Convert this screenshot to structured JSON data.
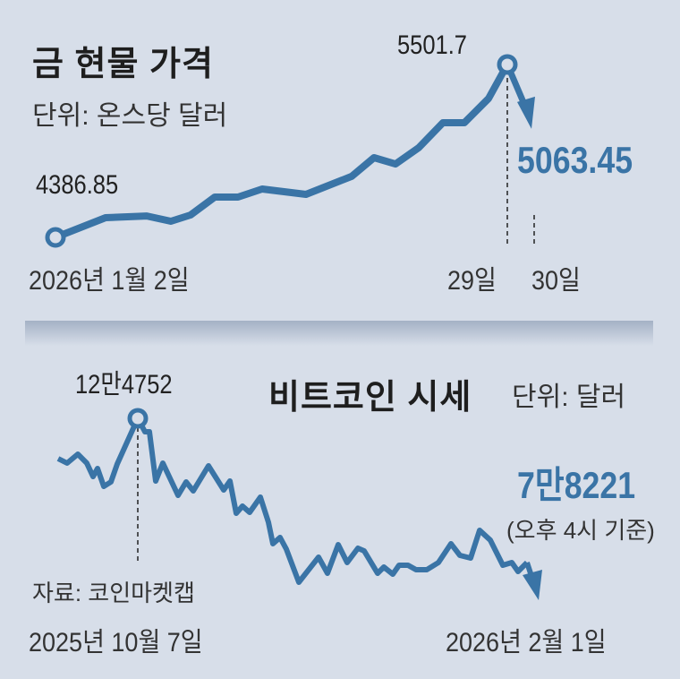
{
  "colors": {
    "background": "#d7dee9",
    "line": "#3a74a6",
    "text": "#1e1e1e"
  },
  "chart_data": [
    {
      "type": "line",
      "title": "금 현물 가격",
      "unit": "단위: 온스당 달러",
      "x_labels": {
        "start": "2026년 1월 2일",
        "peak": "29일",
        "end": "30일"
      },
      "values": [
        4386.85,
        4514,
        4525,
        4491,
        4531,
        4647,
        4647,
        4699,
        4664,
        4780,
        4901,
        4860,
        4965,
        5126,
        5126,
        5282,
        5501.7,
        5063.45
      ],
      "annotations": {
        "start": "4386.85",
        "peak": "5501.7",
        "end": "5063.45"
      }
    },
    {
      "type": "line",
      "title": "비트코인 시세",
      "unit": "단위: 달러",
      "source": "자료: 코인마켓캡",
      "x_labels": {
        "start": "2025년 10월 7일",
        "end": "2026년 2월 1일"
      },
      "values": [
        114438,
        113292,
        115584,
        113292,
        109854,
        111917,
        107333,
        108479,
        113063,
        124752,
        121314,
        121314,
        108708,
        113292,
        105041,
        108479,
        106187,
        112604,
        106416,
        108708,
        100457,
        102290,
        100686,
        104582,
        98165,
        92664,
        94268,
        91289,
        82808,
        89226,
        85100,
        92435,
        87851,
        91518,
        90830,
        85100,
        86705,
        84871,
        87163,
        87163,
        86017,
        86017,
        87851,
        92664,
        89684,
        88997,
        96102,
        93581,
        87163,
        87851,
        85559,
        87851,
        78221
      ],
      "annotations": {
        "peak": "12만4752",
        "end": "7만8221",
        "end_note": "(오후 4시 기준)"
      }
    }
  ]
}
